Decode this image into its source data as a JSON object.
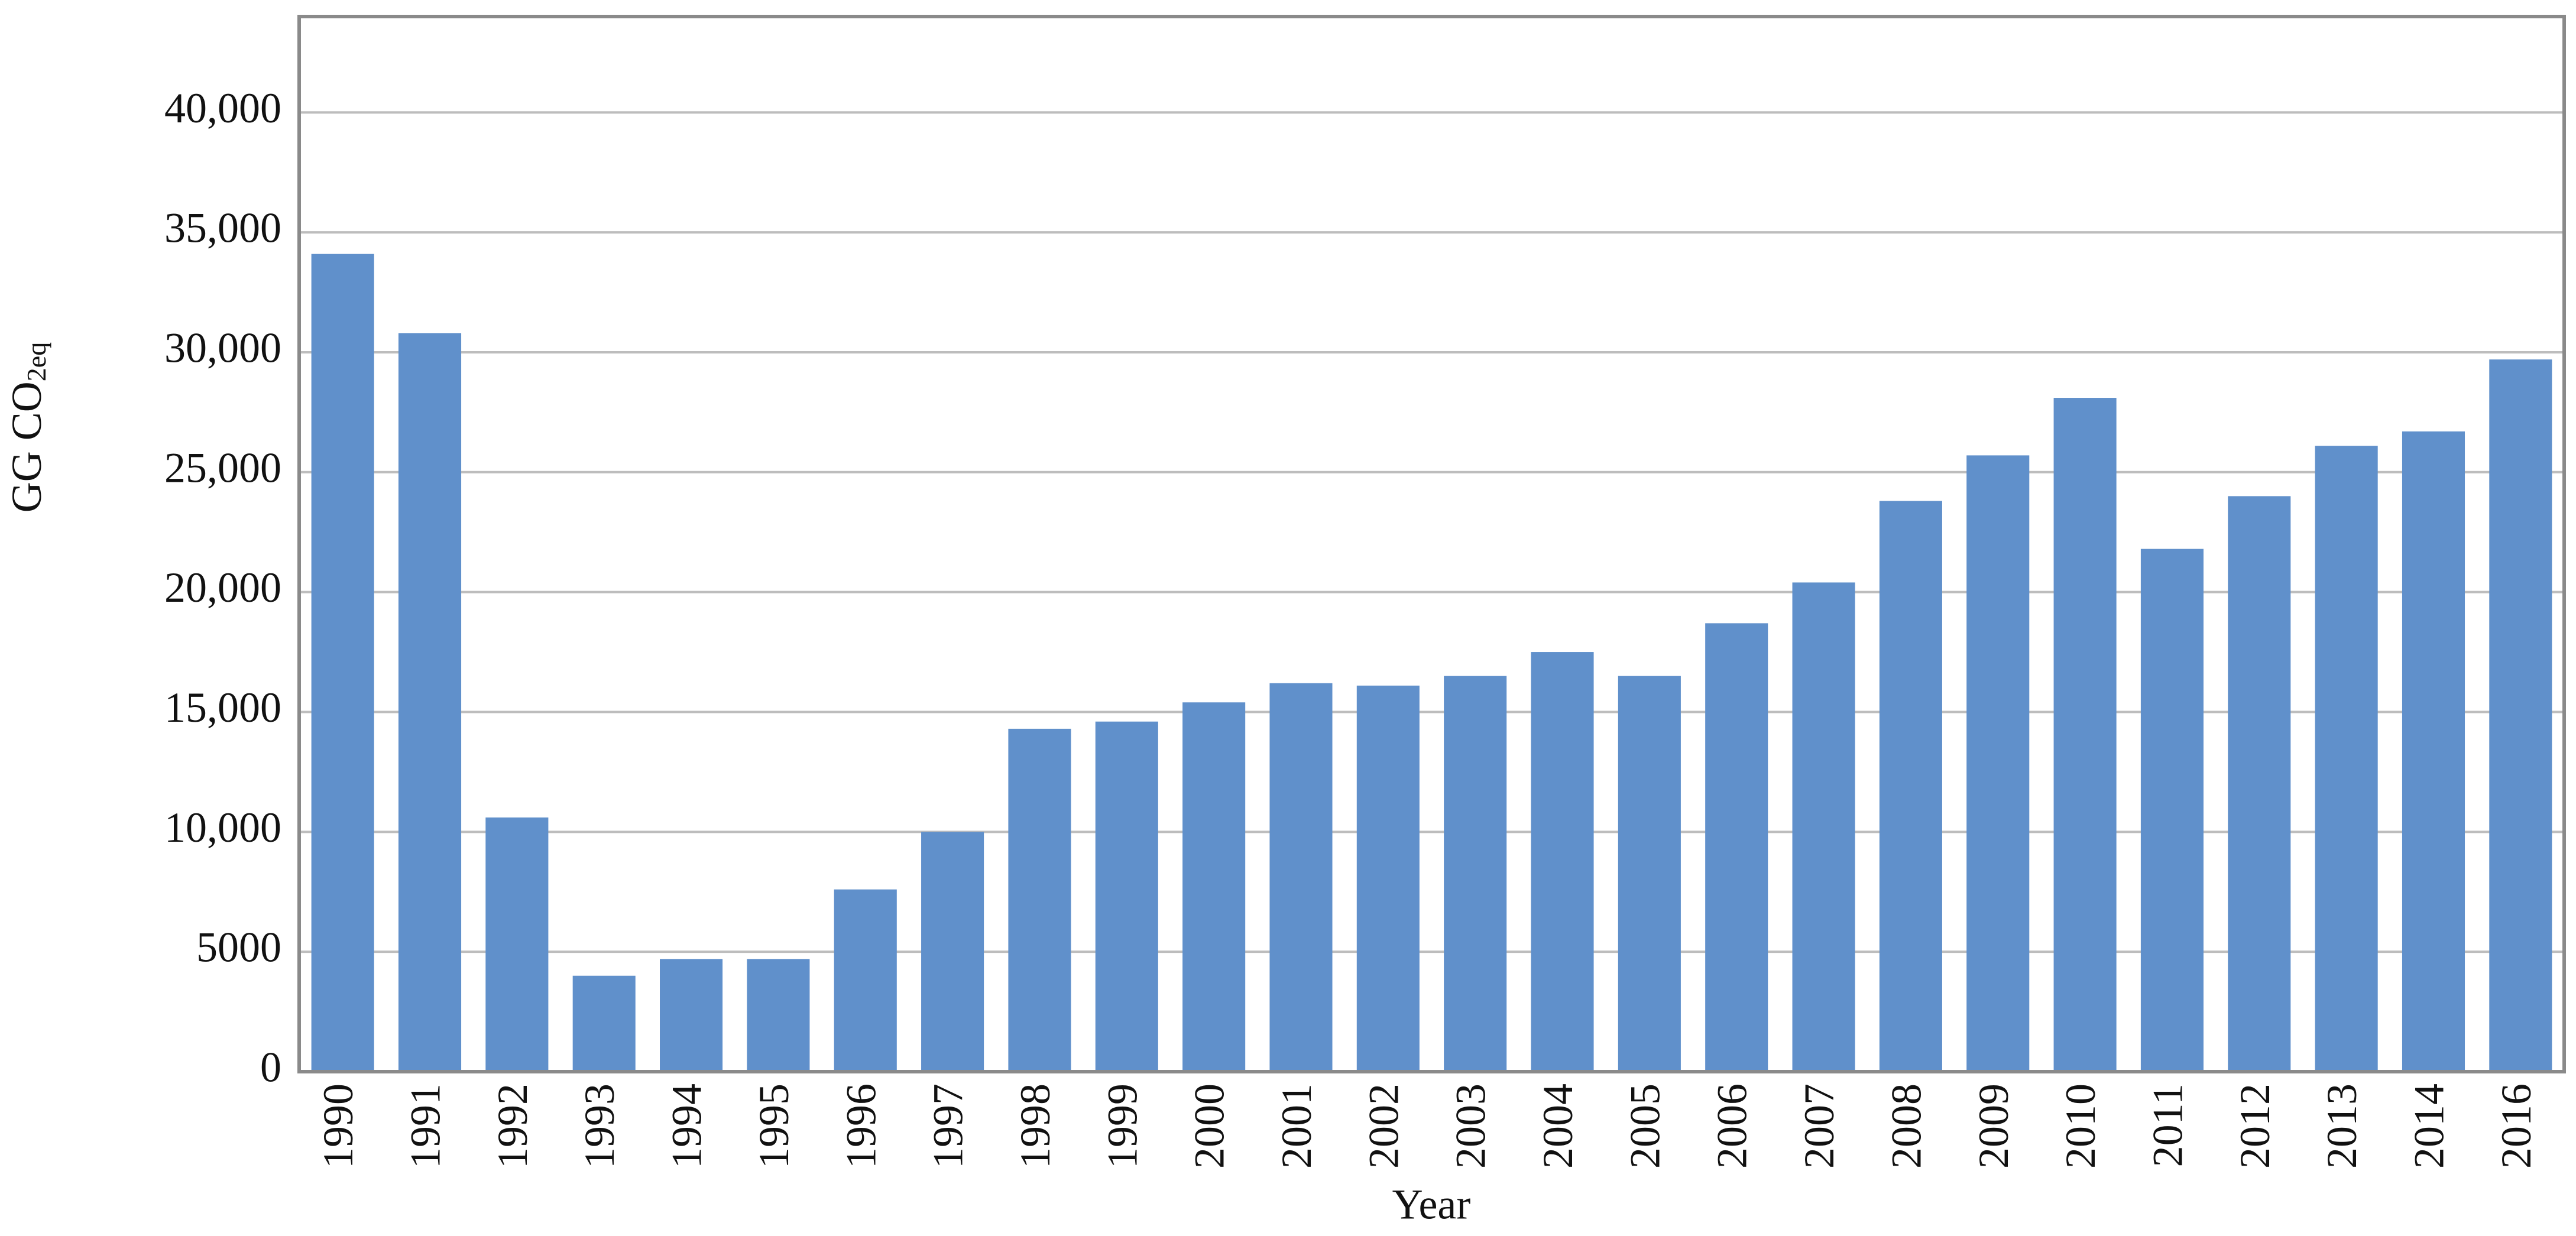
{
  "chart_data": {
    "type": "bar",
    "ylabel": {
      "text": "GG CO",
      "subscript": "2eq"
    },
    "xlabel": "Year",
    "categories": [
      "1990",
      "1991",
      "1992",
      "1993",
      "1994",
      "1995",
      "1996",
      "1997",
      "1998",
      "1999",
      "2000",
      "2001",
      "2002",
      "2003",
      "2004",
      "2005",
      "2006",
      "2007",
      "2008",
      "2009",
      "2010",
      "2011",
      "2012",
      "2013",
      "2014",
      "2016"
    ],
    "values": [
      34100,
      30800,
      10600,
      4000,
      4700,
      4700,
      7600,
      10000,
      14300,
      14600,
      15400,
      16200,
      16100,
      16500,
      17500,
      16500,
      18700,
      20400,
      23800,
      25700,
      28100,
      21800,
      24000,
      26100,
      26700,
      29700
    ],
    "color": "#6090cb",
    "ylim": [
      0,
      44000
    ],
    "yticks": [
      0,
      5000,
      {
        "value": 10000,
        "label": "10,000"
      },
      {
        "value": 15000,
        "label": "15,000"
      },
      {
        "value": 20000,
        "label": "20,000"
      },
      {
        "value": 25000,
        "label": "25,000"
      },
      {
        "value": 30000,
        "label": "30,000"
      },
      {
        "value": 35000,
        "label": "35,000"
      },
      {
        "value": 40000,
        "label": "40,000"
      }
    ],
    "grid": true
  }
}
